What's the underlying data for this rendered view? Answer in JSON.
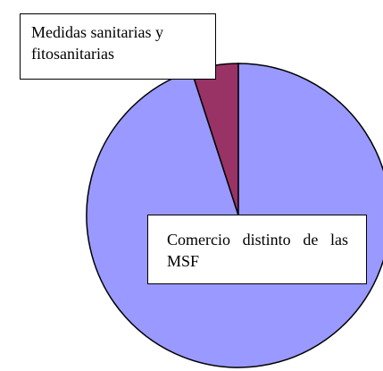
{
  "chart_data": {
    "type": "pie",
    "categories": [
      "Medidas sanitarias y fitosanitarias",
      "Comercio distinto de las MSF"
    ],
    "values": [
      5,
      95
    ],
    "colors": [
      "#993366",
      "#9999ff"
    ]
  }
}
